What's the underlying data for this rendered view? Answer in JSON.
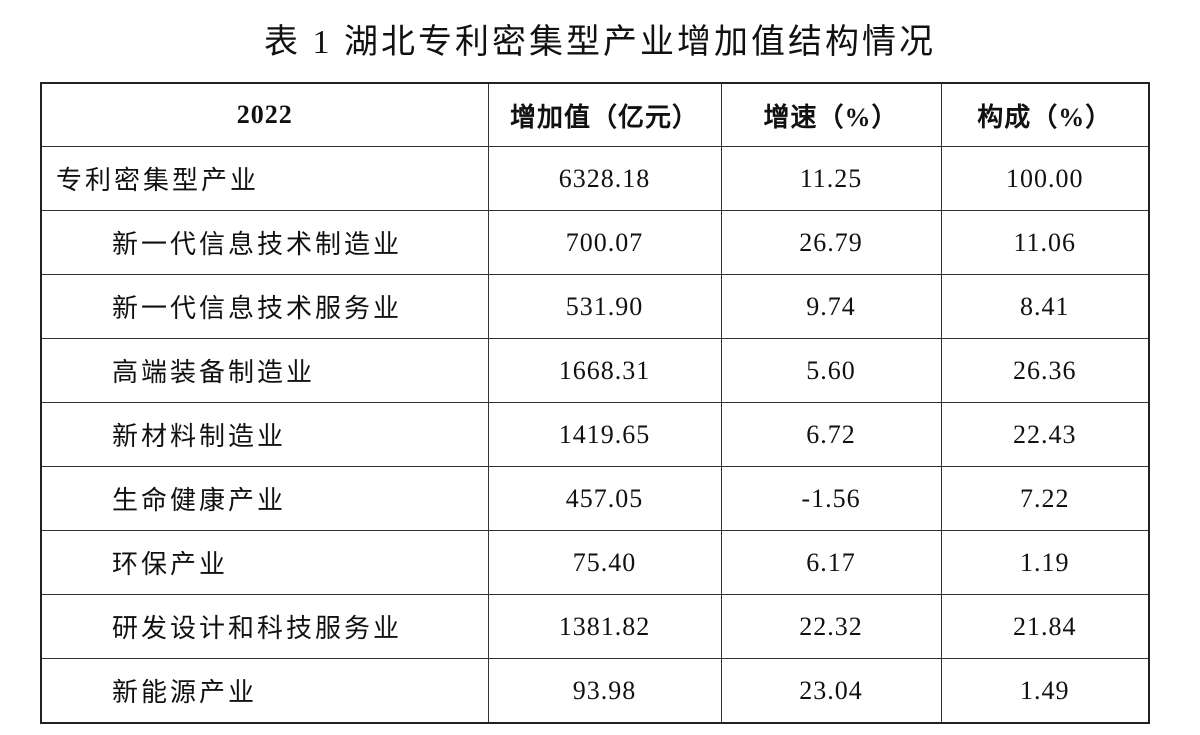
{
  "title": "表 1 湖北专利密集型产业增加值结构情况",
  "table": {
    "header": [
      "2022",
      "增加值（亿元）",
      "增速（%）",
      "构成（%）"
    ],
    "rows": [
      [
        "专利密集型产业",
        "6328.18",
        "11.25",
        "100.00"
      ],
      [
        "新一代信息技术制造业",
        "700.07",
        "26.79",
        "11.06"
      ],
      [
        "新一代信息技术服务业",
        "531.90",
        "9.74",
        "8.41"
      ],
      [
        "高端装备制造业",
        "1668.31",
        "5.60",
        "26.36"
      ],
      [
        "新材料制造业",
        "1419.65",
        "6.72",
        "22.43"
      ],
      [
        "生命健康产业",
        "457.05",
        "-1.56",
        "7.22"
      ],
      [
        "环保产业",
        "75.40",
        "6.17",
        "1.19"
      ],
      [
        "研发设计和科技服务业",
        "1381.82",
        "22.32",
        "21.84"
      ],
      [
        "新能源产业",
        "93.98",
        "23.04",
        "1.49"
      ]
    ]
  }
}
